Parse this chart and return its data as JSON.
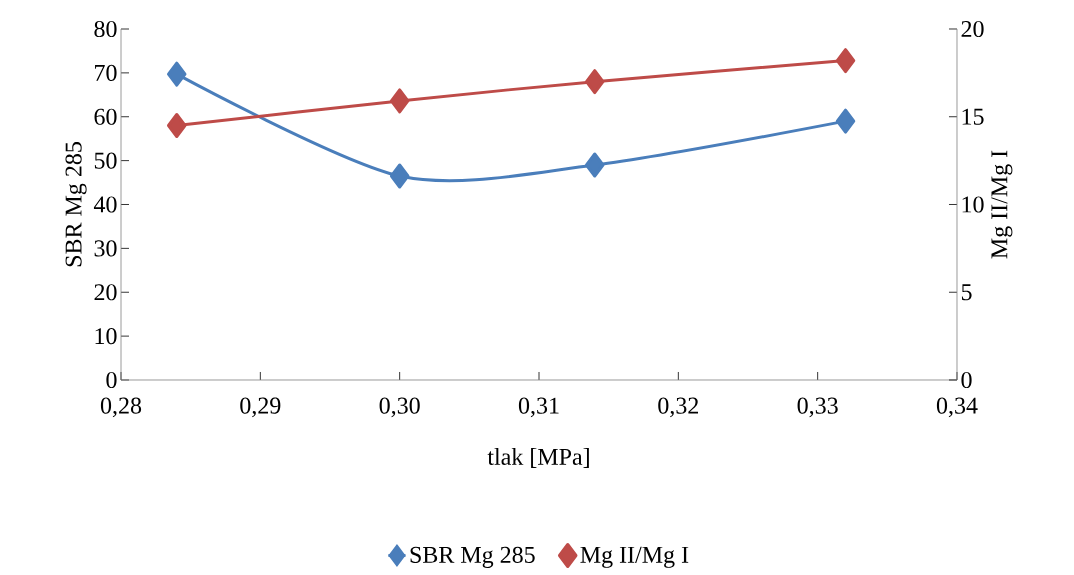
{
  "chart_data": {
    "type": "line",
    "xlabel": "tlak [MPa]",
    "ylabel": "SBR Mg 285",
    "y2label": "Mg II/Mg I",
    "x": [
      0.284,
      0.3,
      0.314,
      0.332
    ],
    "series": [
      {
        "name": "SBR Mg 285",
        "color": "#4a7ebb",
        "values": [
          69.7,
          46.5,
          49.0,
          59.0
        ]
      },
      {
        "name": "Mg II/Mg I",
        "color": "#be4b48",
        "values": [
          14.5,
          15.9,
          17.0,
          18.2
        ],
        "axis": "y2"
      }
    ],
    "xlim": [
      0.28,
      0.34
    ],
    "xticks": [
      {
        "value": 0.28,
        "label": "0,28"
      },
      {
        "value": 0.29,
        "label": "0,29"
      },
      {
        "value": 0.3,
        "label": "0,30"
      },
      {
        "value": 0.31,
        "label": "0,31"
      },
      {
        "value": 0.32,
        "label": "0,32"
      },
      {
        "value": 0.33,
        "label": "0,33"
      },
      {
        "value": 0.34,
        "label": "0,34"
      }
    ],
    "ylim": [
      0,
      80
    ],
    "yticks": [
      0,
      10,
      20,
      30,
      40,
      50,
      60,
      70,
      80
    ],
    "y2lim": [
      0,
      20
    ],
    "y2ticks": [
      0,
      5,
      10,
      15,
      20
    ],
    "marker": "diamond",
    "line_style": "solid",
    "grid": false,
    "legend": "bottom"
  }
}
